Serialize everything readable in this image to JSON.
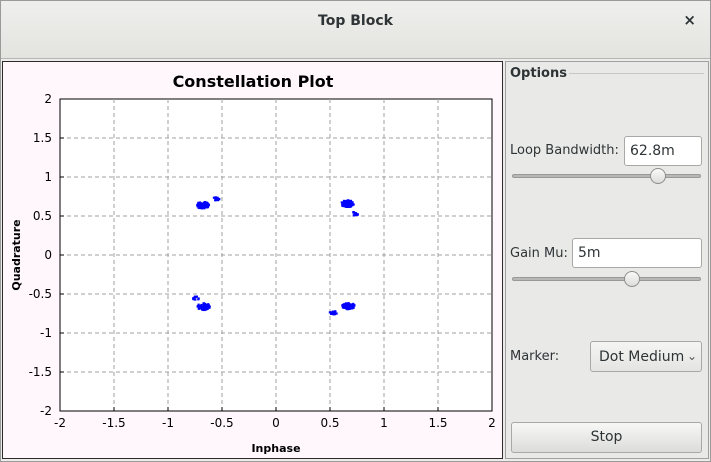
{
  "window": {
    "title": "Top Block",
    "close_glyph": "×"
  },
  "options": {
    "group_label": "Options",
    "loop_bandwidth": {
      "label": "Loop Bandwidth:",
      "value": "62.8m"
    },
    "gain_mu": {
      "label": "Gain Mu:",
      "value": "5m"
    },
    "marker": {
      "label": "Marker:",
      "selected": "Dot Medium"
    },
    "stop_label": "Stop"
  },
  "chart_data": {
    "type": "scatter",
    "title": "Constellation Plot",
    "xlabel": "Inphase",
    "ylabel": "Quadrature",
    "xlim": [
      -2,
      2
    ],
    "ylim": [
      -2,
      2
    ],
    "xticks": [
      "-2",
      "-1.5",
      "-1",
      "-0.5",
      "0",
      "0.5",
      "1",
      "1.5",
      "2"
    ],
    "yticks": [
      "2",
      "1.5",
      "1",
      "0.5",
      "0",
      "-0.5",
      "-1",
      "-1.5",
      "-2"
    ],
    "grid": true,
    "marker_color": "#0000ff",
    "clusters": [
      {
        "x": -0.68,
        "y": 0.64
      },
      {
        "x": -0.56,
        "y": 0.72
      },
      {
        "x": 0.66,
        "y": 0.66
      },
      {
        "x": 0.73,
        "y": 0.53
      },
      {
        "x": -0.67,
        "y": -0.66
      },
      {
        "x": -0.74,
        "y": -0.55
      },
      {
        "x": 0.67,
        "y": -0.65
      },
      {
        "x": 0.53,
        "y": -0.74
      }
    ]
  }
}
